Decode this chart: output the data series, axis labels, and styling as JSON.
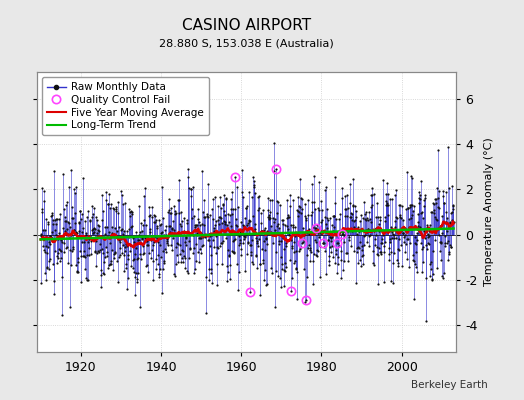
{
  "title": "CASINO AIRPORT",
  "subtitle": "28.880 S, 153.038 E (Australia)",
  "ylabel": "Temperature Anomaly (°C)",
  "credit": "Berkeley Earth",
  "ylim": [
    -5.2,
    7.2
  ],
  "yticks": [
    -4,
    -2,
    0,
    2,
    4,
    6
  ],
  "xticks": [
    1920,
    1940,
    1960,
    1980,
    2000
  ],
  "year_start": 1910,
  "year_end": 2012,
  "background_color": "#e8e8e8",
  "plot_bg_color": "#ffffff",
  "raw_color": "#3333cc",
  "ma_color": "#dd0000",
  "trend_color": "#00bb00",
  "qc_color": "#ff44ff",
  "dot_color": "#111111",
  "legend_items": [
    "Raw Monthly Data",
    "Quality Control Fail",
    "Five Year Moving Average",
    "Long-Term Trend"
  ],
  "grid_color": "#cccccc"
}
